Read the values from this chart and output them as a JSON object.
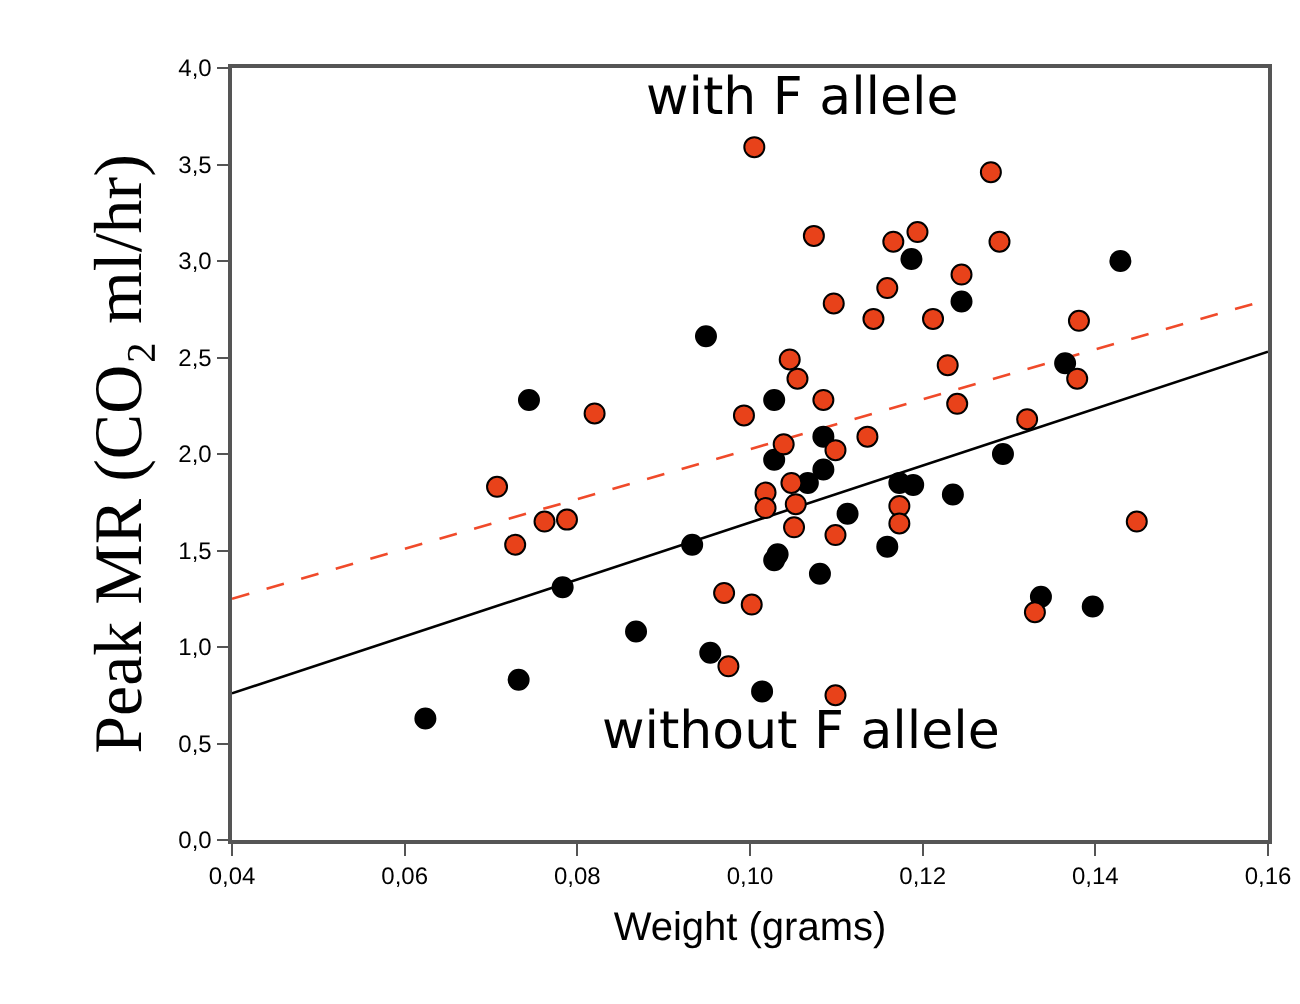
{
  "chart_data": {
    "type": "scatter",
    "xlabel": "Weight (grams)",
    "ylabel": "Peak MR (CO₂ ml/hr)",
    "annotations": [
      "with F allele",
      "without F allele"
    ],
    "xlim": [
      0.04,
      0.16
    ],
    "xticks": [
      {
        "value": 0.04,
        "label": "0,04"
      },
      {
        "value": 0.06,
        "label": "0,06"
      },
      {
        "value": 0.08,
        "label": "0,08"
      },
      {
        "value": 0.1,
        "label": "0,10"
      },
      {
        "value": 0.12,
        "label": "0,12"
      },
      {
        "value": 0.14,
        "label": "0,14"
      },
      {
        "value": 0.16,
        "label": "0,16"
      }
    ],
    "ylim": [
      0,
      4
    ],
    "yticks": [
      {
        "value": 0,
        "label": "0,0"
      },
      {
        "value": 0.5,
        "label": "0,5"
      },
      {
        "value": 1,
        "label": "1,0"
      },
      {
        "value": 1.5,
        "label": "1,5"
      },
      {
        "value": 2,
        "label": "2,0"
      },
      {
        "value": 2.5,
        "label": "2,5"
      },
      {
        "value": 3,
        "label": "3,0"
      },
      {
        "value": 3.5,
        "label": "3,5"
      },
      {
        "value": 4,
        "label": "4,0"
      }
    ],
    "grid": false,
    "marker": "circle",
    "series": [
      {
        "type": "line",
        "color": "#000000",
        "line_style": "solid",
        "marker": "none",
        "x": [
          0.04,
          0.16
        ],
        "values": [
          0.76,
          2.53
        ]
      },
      {
        "type": "line",
        "color": "#f04a2a",
        "line_style": "dashed",
        "marker": "none",
        "x": [
          0.04,
          0.16
        ],
        "values": [
          1.25,
          2.8
        ]
      },
      {
        "color": "#000000",
        "x": [
          0.0949,
          0.0744,
          0.1187,
          0.1429,
          0.1245,
          0.1365,
          0.1028,
          0.1085,
          0.1028,
          0.1085,
          0.1067,
          0.1293,
          0.1173,
          0.1189,
          0.1235,
          0.1113,
          0.1159,
          0.1032,
          0.1028,
          0.1081,
          0.1337,
          0.1397,
          0.1014,
          0.0933,
          0.0783,
          0.0868,
          0.0954,
          0.0732,
          0.0624
        ],
        "values": [
          2.61,
          2.28,
          3.01,
          3.0,
          2.79,
          2.47,
          2.28,
          2.09,
          1.97,
          1.92,
          1.85,
          2.0,
          1.85,
          1.84,
          1.79,
          1.69,
          1.52,
          1.48,
          1.45,
          1.38,
          1.26,
          1.21,
          0.77,
          1.53,
          1.31,
          1.08,
          0.97,
          0.83,
          0.63
        ]
      },
      {
        "color": "#e8421a",
        "x": [
          0.1005,
          0.082,
          0.0993,
          0.0707,
          0.1279,
          0.1074,
          0.1166,
          0.1194,
          0.1289,
          0.1245,
          0.1159,
          0.1097,
          0.1143,
          0.1212,
          0.1381,
          0.1379,
          0.1046,
          0.1055,
          0.1229,
          0.124,
          0.1085,
          0.1321,
          0.1039,
          0.1099,
          0.1136,
          0.1048,
          0.1018,
          0.1018,
          0.1053,
          0.1173,
          0.1173,
          0.1051,
          0.1099,
          0.1448,
          0.1002,
          0.133,
          0.1099,
          0.0762,
          0.0788,
          0.0728,
          0.097,
          0.0975
        ],
        "values": [
          3.59,
          2.21,
          2.2,
          1.83,
          3.46,
          3.13,
          3.1,
          3.15,
          3.1,
          2.93,
          2.86,
          2.78,
          2.7,
          2.7,
          2.69,
          2.39,
          2.49,
          2.39,
          2.46,
          2.26,
          2.28,
          2.18,
          2.05,
          2.02,
          2.09,
          1.85,
          1.8,
          1.72,
          1.74,
          1.73,
          1.64,
          1.62,
          1.58,
          1.65,
          1.22,
          1.18,
          0.75,
          1.65,
          1.66,
          1.53,
          1.28,
          0.9
        ]
      }
    ]
  }
}
